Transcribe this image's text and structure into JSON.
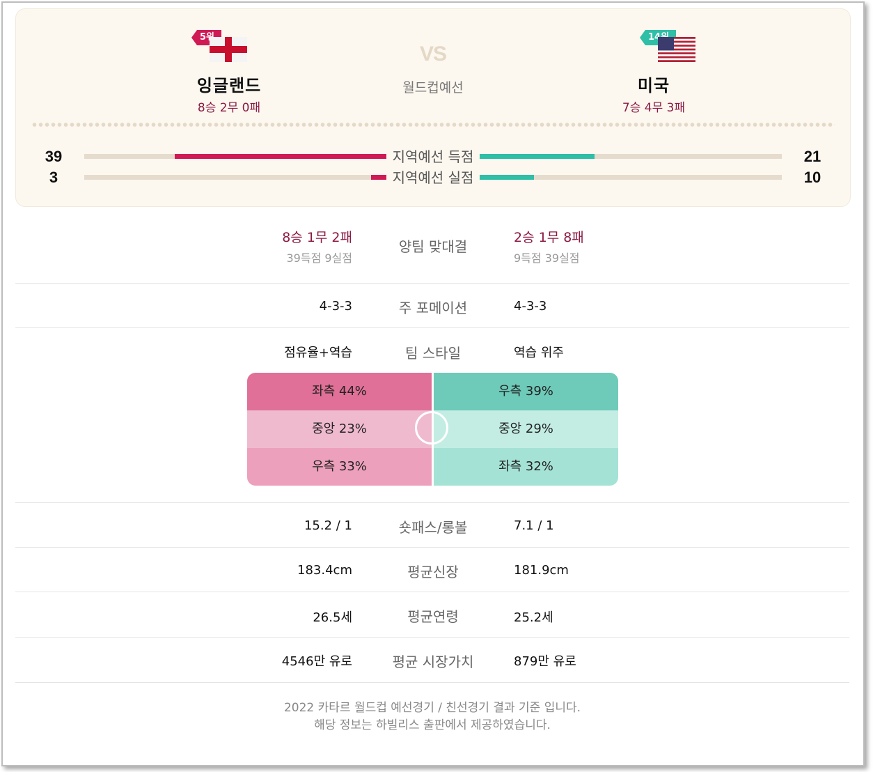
{
  "header": {
    "vs_label": "VS",
    "vs_sub": "월드컵예선",
    "home": {
      "rank": "5위",
      "name": "잉글랜드",
      "record": "8승 2무 0패",
      "flag": "england-flag-icon",
      "color": "#d01a56"
    },
    "away": {
      "rank": "14위",
      "name": "미국",
      "record": "7승 4무 3패",
      "flag": "usa-flag-icon",
      "color": "#2fbea6"
    }
  },
  "bars": [
    {
      "label": "지역예선 득점",
      "home_value": "39",
      "away_value": "21",
      "home_fraction": 0.7,
      "away_fraction": 0.38
    },
    {
      "label": "지역예선 실점",
      "home_value": "3",
      "away_value": "10",
      "home_fraction": 0.05,
      "away_fraction": 0.18
    }
  ],
  "head_to_head": {
    "label": "양팀 맞대결",
    "home_record": "8승 1무 2패",
    "home_goals": "39득점 9실점",
    "away_record": "2승 1무 8패",
    "away_goals": "9득점 39실점"
  },
  "formation": {
    "label": "주 포메이션",
    "home": "4-3-3",
    "away": "4-3-3"
  },
  "style": {
    "label": "팀 스타일",
    "home": "점유율+역습",
    "away": "역습 위주",
    "home_zones": [
      "좌측 44%",
      "중앙 23%",
      "우측 33%"
    ],
    "away_zones": [
      "우측 39%",
      "중앙 29%",
      "좌측 32%"
    ],
    "home_zone_colors": [
      "#e07097",
      "#f0bace",
      "#eda0bb"
    ],
    "away_zone_colors": [
      "#6ecab9",
      "#c3ede3",
      "#a5e2d6"
    ]
  },
  "stats": [
    {
      "label": "숏패스/롱볼",
      "home": "15.2 / 1",
      "away": "7.1 / 1"
    },
    {
      "label": "평균신장",
      "home": "183.4cm",
      "away": "181.9cm"
    },
    {
      "label": "평균연령",
      "home": "26.5세",
      "away": "25.2세"
    },
    {
      "label": "평균 시장가치",
      "home": "4546만 유로",
      "away": "879만 유로"
    }
  ],
  "footer": {
    "line1": "2022 카타르 월드컵 예선경기 / 친선경기 결과 기준 입니다.",
    "line2": "해당 정보는 하빌리스 출판에서 제공하였습니다."
  }
}
